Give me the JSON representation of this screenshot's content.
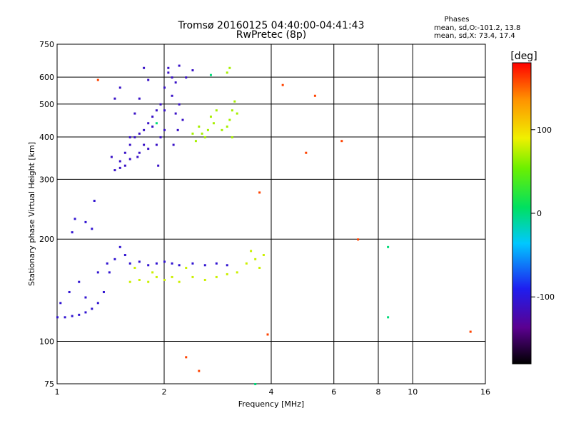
{
  "title": {
    "line1": "Tromsø 20160125 04:40:00-04:41:43",
    "line2": "RwPretec (8p)"
  },
  "phases_box": {
    "heading": "Phases",
    "o_line": "mean, sd,O:-101.2, 13.8",
    "x_line": "mean, sd,X:  73.4, 17.4"
  },
  "colorbar": {
    "unit": "[deg]",
    "tick_labels": [
      "100",
      "0",
      "-100"
    ],
    "tick_values": [
      100,
      0,
      -100
    ],
    "range": [
      -180,
      180
    ]
  },
  "chart_data": {
    "type": "scatter",
    "xlabel": "Frequency [MHz]",
    "ylabel": "Stationary phase Virtual Height [km]",
    "x_scale": "log",
    "y_scale": "log",
    "xlim": [
      1,
      16
    ],
    "ylim": [
      75,
      750
    ],
    "x_ticks": [
      1,
      2,
      4,
      6,
      8,
      10,
      16
    ],
    "x_tick_labels": [
      "1",
      "2",
      "4",
      "6",
      "8",
      "10",
      "16"
    ],
    "y_ticks": [
      75,
      100,
      200,
      300,
      400,
      500,
      600,
      750
    ],
    "y_tick_labels": [
      "75",
      "100",
      "200",
      "300",
      "400",
      "500",
      "600",
      "750"
    ],
    "grid": true,
    "clusters": [
      {
        "desc": "O-mode F-layer trace",
        "phase": -110,
        "points": [
          [
            1.42,
            350
          ],
          [
            1.45,
            320
          ],
          [
            1.5,
            340
          ],
          [
            1.55,
            360
          ],
          [
            1.6,
            380
          ],
          [
            1.65,
            400
          ],
          [
            1.7,
            410
          ],
          [
            1.75,
            420
          ],
          [
            1.8,
            440
          ],
          [
            1.85,
            460
          ],
          [
            1.9,
            480
          ],
          [
            1.95,
            500
          ],
          [
            2.0,
            560
          ],
          [
            2.05,
            620
          ],
          [
            2.1,
            600
          ],
          [
            2.15,
            580
          ],
          [
            2.2,
            500
          ],
          [
            2.25,
            450
          ],
          [
            2.0,
            420
          ],
          [
            1.95,
            400
          ],
          [
            1.9,
            380
          ],
          [
            1.8,
            370
          ],
          [
            1.7,
            360
          ],
          [
            1.6,
            345
          ],
          [
            1.55,
            330
          ],
          [
            1.5,
            325
          ],
          [
            1.65,
            470
          ],
          [
            1.7,
            520
          ],
          [
            1.75,
            640
          ],
          [
            1.5,
            560
          ],
          [
            1.45,
            520
          ],
          [
            1.8,
            590
          ],
          [
            2.05,
            640
          ],
          [
            2.2,
            650
          ],
          [
            2.4,
            630
          ],
          [
            2.3,
            600
          ],
          [
            2.1,
            530
          ],
          [
            2.15,
            470
          ],
          [
            1.85,
            430
          ],
          [
            2.0,
            480
          ],
          [
            1.75,
            380
          ],
          [
            1.6,
            400
          ],
          [
            1.68,
            350
          ],
          [
            1.92,
            330
          ],
          [
            2.12,
            380
          ],
          [
            2.18,
            420
          ]
        ]
      },
      {
        "desc": "O-mode E-layer trace",
        "phase": -105,
        "points": [
          [
            1.0,
            118
          ],
          [
            1.05,
            118
          ],
          [
            1.1,
            119
          ],
          [
            1.15,
            120
          ],
          [
            1.2,
            122
          ],
          [
            1.25,
            125
          ],
          [
            1.3,
            130
          ],
          [
            1.35,
            140
          ],
          [
            1.4,
            160
          ],
          [
            1.45,
            175
          ],
          [
            1.5,
            190
          ],
          [
            1.55,
            180
          ],
          [
            1.6,
            170
          ],
          [
            1.7,
            172
          ],
          [
            1.8,
            168
          ],
          [
            1.9,
            170
          ],
          [
            2.0,
            172
          ],
          [
            2.1,
            170
          ],
          [
            2.2,
            168
          ],
          [
            2.4,
            170
          ],
          [
            2.6,
            168
          ],
          [
            2.8,
            170
          ],
          [
            3.0,
            168
          ],
          [
            1.2,
            135
          ],
          [
            1.15,
            150
          ],
          [
            1.1,
            210
          ],
          [
            1.12,
            230
          ],
          [
            1.25,
            215
          ],
          [
            1.27,
            260
          ],
          [
            1.2,
            225
          ],
          [
            1.02,
            130
          ],
          [
            1.08,
            140
          ],
          [
            1.3,
            160
          ],
          [
            1.38,
            170
          ]
        ]
      },
      {
        "desc": "X-mode F-layer trace",
        "phase": 70,
        "points": [
          [
            2.5,
            430
          ],
          [
            2.55,
            410
          ],
          [
            2.6,
            400
          ],
          [
            2.65,
            420
          ],
          [
            2.7,
            460
          ],
          [
            2.8,
            480
          ],
          [
            2.9,
            420
          ],
          [
            3.0,
            430
          ],
          [
            3.05,
            450
          ],
          [
            3.1,
            480
          ],
          [
            3.15,
            510
          ],
          [
            3.2,
            470
          ],
          [
            3.0,
            620
          ],
          [
            3.05,
            640
          ],
          [
            2.4,
            410
          ],
          [
            2.45,
            390
          ],
          [
            3.1,
            400
          ],
          [
            2.75,
            440
          ]
        ]
      },
      {
        "desc": "X-mode E-layer trace",
        "phase": 80,
        "points": [
          [
            1.6,
            150
          ],
          [
            1.7,
            152
          ],
          [
            1.8,
            150
          ],
          [
            1.9,
            155
          ],
          [
            2.0,
            152
          ],
          [
            2.1,
            155
          ],
          [
            2.2,
            150
          ],
          [
            2.4,
            155
          ],
          [
            2.6,
            152
          ],
          [
            2.8,
            155
          ],
          [
            3.0,
            158
          ],
          [
            3.2,
            160
          ],
          [
            3.4,
            170
          ],
          [
            3.6,
            175
          ],
          [
            3.8,
            180
          ],
          [
            3.7,
            165
          ],
          [
            3.5,
            185
          ],
          [
            1.65,
            165
          ],
          [
            1.85,
            160
          ],
          [
            2.3,
            165
          ]
        ]
      },
      {
        "desc": "scattered points",
        "phase": 160,
        "points": [
          [
            3.9,
            105
          ],
          [
            4.3,
            570
          ],
          [
            5.3,
            530
          ],
          [
            6.3,
            390
          ],
          [
            7.0,
            200
          ],
          [
            14.5,
            107
          ],
          [
            5.0,
            360
          ],
          [
            3.7,
            275
          ],
          [
            2.5,
            82
          ],
          [
            1.3,
            590
          ],
          [
            2.3,
            90
          ]
        ]
      },
      {
        "desc": "scattered points",
        "phase": 0,
        "points": [
          [
            8.5,
            190
          ],
          [
            8.5,
            118
          ],
          [
            3.6,
            75
          ],
          [
            2.7,
            610
          ],
          [
            1.9,
            440
          ]
        ]
      }
    ]
  }
}
